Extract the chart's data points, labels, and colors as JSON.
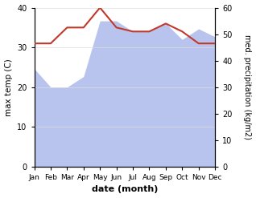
{
  "months": [
    "Jan",
    "Feb",
    "Mar",
    "Apr",
    "May",
    "Jun",
    "Jul",
    "Aug",
    "Sep",
    "Oct",
    "Nov",
    "Dec"
  ],
  "temp": [
    31,
    31,
    35,
    35,
    40,
    35,
    34,
    34,
    36,
    34,
    31,
    31
  ],
  "precip": [
    37,
    30,
    30,
    34,
    55,
    55,
    51,
    51,
    54,
    48,
    52,
    49
  ],
  "temp_color": "#c0392b",
  "precip_fill_color": "#b8c4ee",
  "temp_ylim": [
    0,
    40
  ],
  "precip_ylim": [
    0,
    60
  ],
  "xlabel": "date (month)",
  "ylabel_left": "max temp (C)",
  "ylabel_right": "med. precipitation (kg/m2)"
}
